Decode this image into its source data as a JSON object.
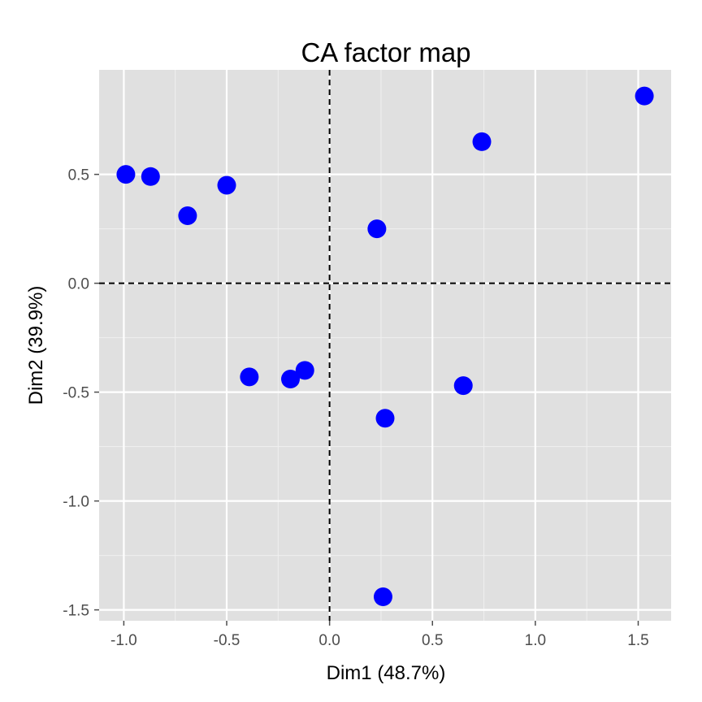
{
  "chart_data": {
    "type": "scatter",
    "title": "CA factor map",
    "xlabel": "Dim1 (48.7%)",
    "ylabel": "Dim2 (39.9%)",
    "xlim": [
      -1.12,
      1.66
    ],
    "ylim": [
      -1.55,
      0.98
    ],
    "x_ticks": [
      -1.0,
      -0.5,
      0.0,
      0.5,
      1.0,
      1.5
    ],
    "x_tick_labels": [
      "-1.0",
      "-0.5",
      "0.0",
      "0.5",
      "1.0",
      "1.5"
    ],
    "y_ticks": [
      0.5,
      0.0,
      -0.5,
      -1.0,
      -1.5
    ],
    "y_tick_labels": [
      "0.5",
      "0.0",
      "-0.5",
      "-1.0",
      "-1.5"
    ],
    "grid": true,
    "reference_lines": {
      "x": 0,
      "y": 0,
      "style": "dashed"
    },
    "colors": {
      "panel": "#e0e0e0",
      "grid_major": "#ffffff",
      "grid_minor": "#f0f0f0",
      "points": "#0000ff",
      "reference": "#000000"
    },
    "points": [
      {
        "x": -0.99,
        "y": 0.5
      },
      {
        "x": -0.87,
        "y": 0.49
      },
      {
        "x": -0.69,
        "y": 0.31
      },
      {
        "x": -0.5,
        "y": 0.45
      },
      {
        "x": -0.39,
        "y": -0.43
      },
      {
        "x": -0.19,
        "y": -0.44
      },
      {
        "x": -0.12,
        "y": -0.4
      },
      {
        "x": 0.23,
        "y": 0.25
      },
      {
        "x": 0.27,
        "y": -0.62
      },
      {
        "x": 0.26,
        "y": -1.44
      },
      {
        "x": 0.65,
        "y": -0.47
      },
      {
        "x": 0.74,
        "y": 0.65
      },
      {
        "x": 1.53,
        "y": 0.86
      }
    ]
  }
}
